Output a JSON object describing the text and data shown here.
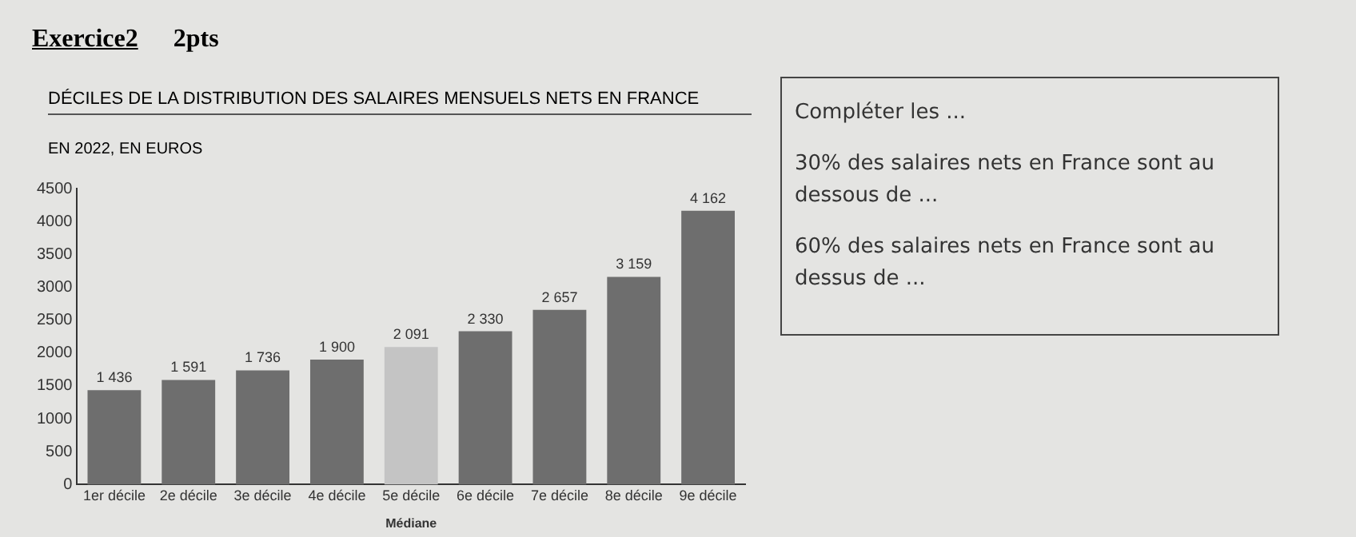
{
  "chart_data": {
    "type": "bar",
    "title": "DÉCILES DE LA DISTRIBUTION DES SALAIRES MENSUELS NETS EN FRANCE",
    "subtitle": "EN 2022, EN EUROS",
    "categories": [
      "1er décile",
      "2e décile",
      "3e décile",
      "4e décile",
      "5e décile",
      "6e décile",
      "7e décile",
      "8e décile",
      "9e décile"
    ],
    "values": [
      1436,
      1591,
      1736,
      1900,
      2091,
      2330,
      2657,
      3159,
      4162
    ],
    "colors": [
      "#6e6e6e",
      "#6e6e6e",
      "#6e6e6e",
      "#6e6e6e",
      "#c4c4c4",
      "#6e6e6e",
      "#6e6e6e",
      "#6e6e6e",
      "#6e6e6e"
    ],
    "value_labels": [
      "1 436",
      "1 591",
      "1 736",
      "1 900",
      "2 091",
      "2 330",
      "2 657",
      "3 159",
      "4 162"
    ],
    "ylim": [
      0,
      4500
    ],
    "yticks": [
      0,
      500,
      1000,
      1500,
      2000,
      2500,
      3000,
      3500,
      4000,
      4500
    ],
    "grid": false,
    "legend": false,
    "annotations": [
      "Exercice2",
      "2pts",
      "Médiane",
      "Compléter les ...",
      "30% des salaires nets en France sont au dessous de ...",
      "60% des salaires nets en France sont au dessus de ..."
    ]
  }
}
